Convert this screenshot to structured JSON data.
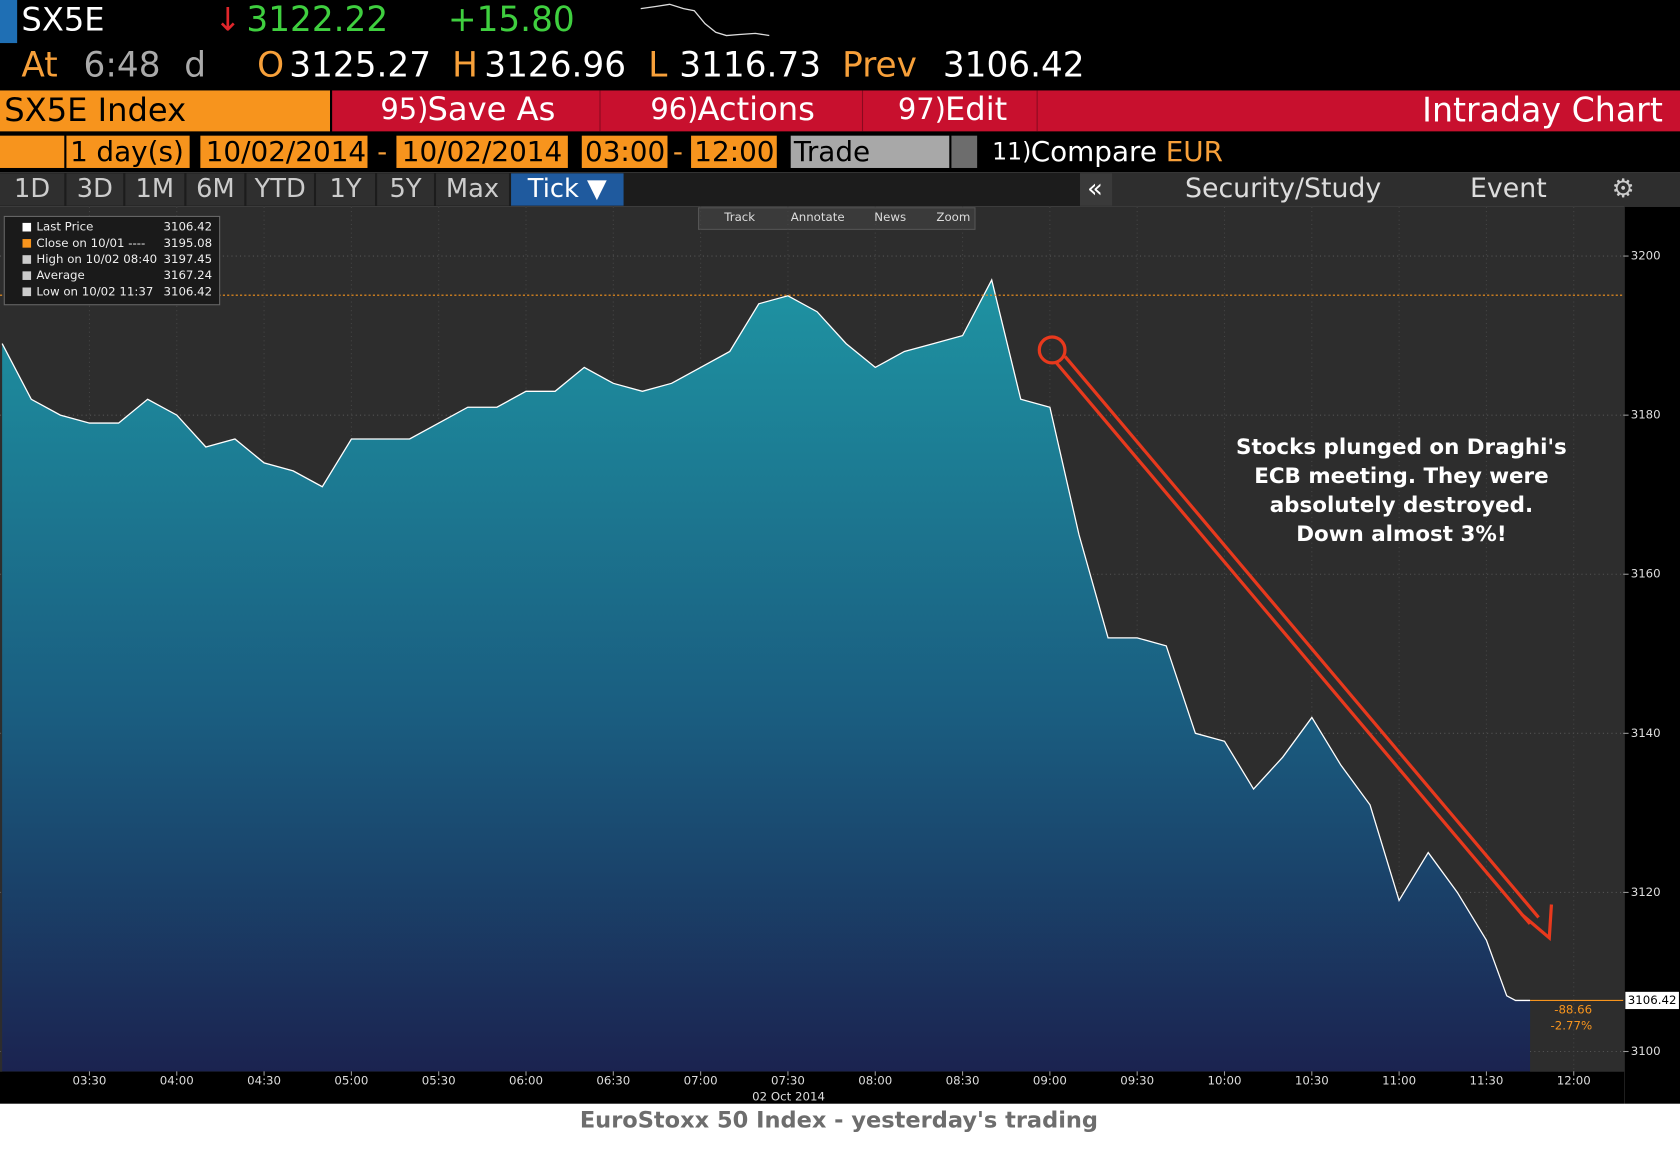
{
  "header": {
    "ticker": "SX5E",
    "direction": "↓",
    "last": "3122.22",
    "change": "+15.80",
    "time_label": "At",
    "time": "6:48",
    "time_flag": "d",
    "open_label": "O",
    "open": "3125.27",
    "high_label": "H",
    "high": "3126.96",
    "low_label": "L",
    "low": "3116.73",
    "prev_label": "Prev",
    "prev": "3106.42"
  },
  "menu": {
    "security": "SX5E Index",
    "items": [
      {
        "num": "95)",
        "label": "Save As"
      },
      {
        "num": "96)",
        "label": "Actions"
      },
      {
        "num": "97)",
        "label": "Edit"
      }
    ],
    "title": "Intraday Chart"
  },
  "settings": {
    "period": "1",
    "unit": "day(s)",
    "start_date": "10/02/2014",
    "separator": "-",
    "end_date": "10/02/2014",
    "start_time": "03:00",
    "end_time": "12:00",
    "mode": "Trade",
    "compare_num": "11)",
    "compare": "Compare",
    "currency": "EUR"
  },
  "tabs": [
    "1D",
    "3D",
    "1M",
    "6M",
    "YTD",
    "1Y",
    "5Y",
    "Max",
    "Tick ▼"
  ],
  "tools": {
    "collapse": "«",
    "study": "Security/Study",
    "event": "Event",
    "chart_tools": [
      "Track",
      "Annotate",
      "News",
      "Zoom"
    ]
  },
  "chart_data": {
    "type": "area",
    "x": [
      "03:00",
      "03:10",
      "03:20",
      "03:30",
      "03:40",
      "03:50",
      "04:00",
      "04:10",
      "04:20",
      "04:30",
      "04:40",
      "04:50",
      "05:00",
      "05:10",
      "05:20",
      "05:30",
      "05:40",
      "05:50",
      "06:00",
      "06:10",
      "06:20",
      "06:30",
      "06:40",
      "06:50",
      "07:00",
      "07:10",
      "07:20",
      "07:30",
      "07:40",
      "07:50",
      "08:00",
      "08:10",
      "08:20",
      "08:30",
      "08:40",
      "08:50",
      "09:00",
      "09:10",
      "09:20",
      "09:30",
      "09:40",
      "09:50",
      "10:00",
      "10:10",
      "10:20",
      "10:30",
      "10:40",
      "10:50",
      "11:00",
      "11:10",
      "11:20",
      "11:30",
      "11:37",
      "11:40",
      "11:45"
    ],
    "series": [
      {
        "name": "Last Price",
        "color": "#ffffff",
        "values": [
          3189,
          3182,
          3180,
          3179,
          3179,
          3182,
          3180,
          3176,
          3177,
          3174,
          3173,
          3171,
          3177,
          3177,
          3177,
          3179,
          3181,
          3181,
          3183,
          3183,
          3186,
          3184,
          3183,
          3184,
          3186,
          3188,
          3194,
          3195,
          3193,
          3189,
          3186,
          3188,
          3189,
          3190,
          3197,
          3182,
          3181,
          3165,
          3152,
          3152,
          3151,
          3140,
          3139,
          3133,
          3137,
          3142,
          3136,
          3131,
          3119,
          3125,
          3120,
          3114,
          3107,
          3106.42,
          3106.42
        ]
      }
    ],
    "last_value": 3106.42,
    "stats": [
      {
        "name": "Close on 10/01 ----",
        "value": 3195.08
      },
      {
        "name": "High on 10/02 08:40",
        "value": 3197.45
      },
      {
        "name": "Average",
        "value": 3167.24
      },
      {
        "name": "Low on 10/02 11:37",
        "value": 3106.42
      }
    ],
    "change_labels": [
      "-88.66",
      "-2.77%"
    ],
    "xlim": [
      "03:00",
      "12:17"
    ],
    "xticks": [
      "03:30",
      "04:00",
      "04:30",
      "05:00",
      "05:30",
      "06:00",
      "06:30",
      "07:00",
      "07:30",
      "08:00",
      "08:30",
      "09:00",
      "09:30",
      "10:00",
      "10:30",
      "11:00",
      "11:30",
      "12:00"
    ],
    "date_label": "02 Oct 2014",
    "ylim": [
      3097.5,
      3206.2
    ],
    "yticks": [
      3100,
      3120,
      3140,
      3160,
      3180,
      3200
    ],
    "grid": true,
    "annotation": [
      "Stocks plunged on Draghi's",
      "ECB meeting.  They were",
      "absolutely destroyed.",
      "Down almost 3%!"
    ],
    "caption": "EuroStoxx 50 Index - yesterday's trading"
  }
}
